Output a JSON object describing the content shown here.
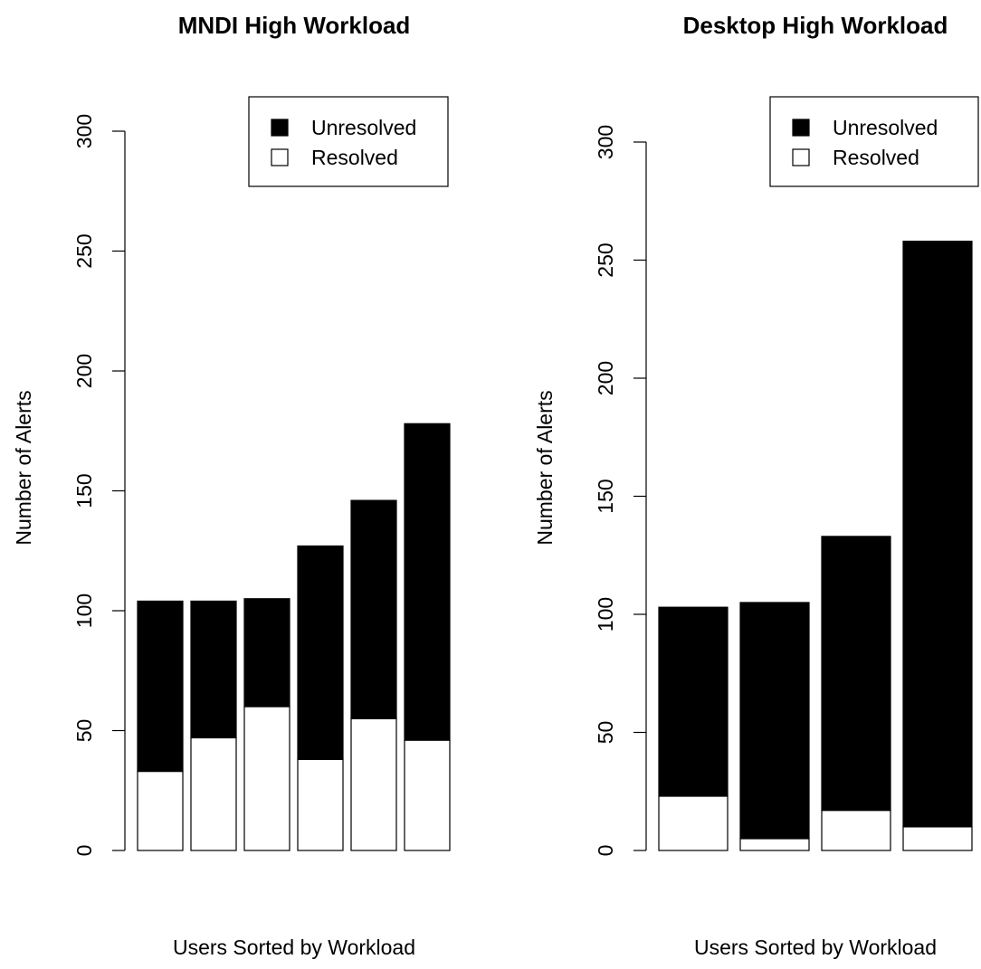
{
  "chart_data": [
    {
      "type": "bar",
      "stacked": true,
      "title": "MNDI High Workload",
      "xlabel": "Users Sorted by Workload",
      "ylabel": "Number of Alerts",
      "ylim": [
        0,
        300
      ],
      "yticks": [
        "0",
        "50",
        "100",
        "150",
        "200",
        "250",
        "300"
      ],
      "legend_placement": "top-right",
      "series": [
        {
          "name": "Resolved",
          "color": "#ffffff",
          "values": [
            33,
            47,
            60,
            38,
            55,
            46
          ]
        },
        {
          "name": "Unresolved",
          "color": "#000000",
          "values": [
            71,
            57,
            45,
            89,
            91,
            132
          ]
        }
      ],
      "legend": [
        "Unresolved",
        "Resolved"
      ]
    },
    {
      "type": "bar",
      "stacked": true,
      "title": "Desktop High Workload",
      "xlabel": "Users Sorted by Workload",
      "ylabel": "Number of Alerts",
      "ylim": [
        0,
        300
      ],
      "yticks": [
        "0",
        "50",
        "100",
        "150",
        "200",
        "250",
        "300"
      ],
      "legend_placement": "top-right",
      "series": [
        {
          "name": "Resolved",
          "color": "#ffffff",
          "values": [
            23,
            5,
            17,
            10
          ]
        },
        {
          "name": "Unresolved",
          "color": "#000000",
          "values": [
            80,
            100,
            116,
            248
          ]
        }
      ],
      "legend": [
        "Unresolved",
        "Resolved"
      ]
    }
  ]
}
